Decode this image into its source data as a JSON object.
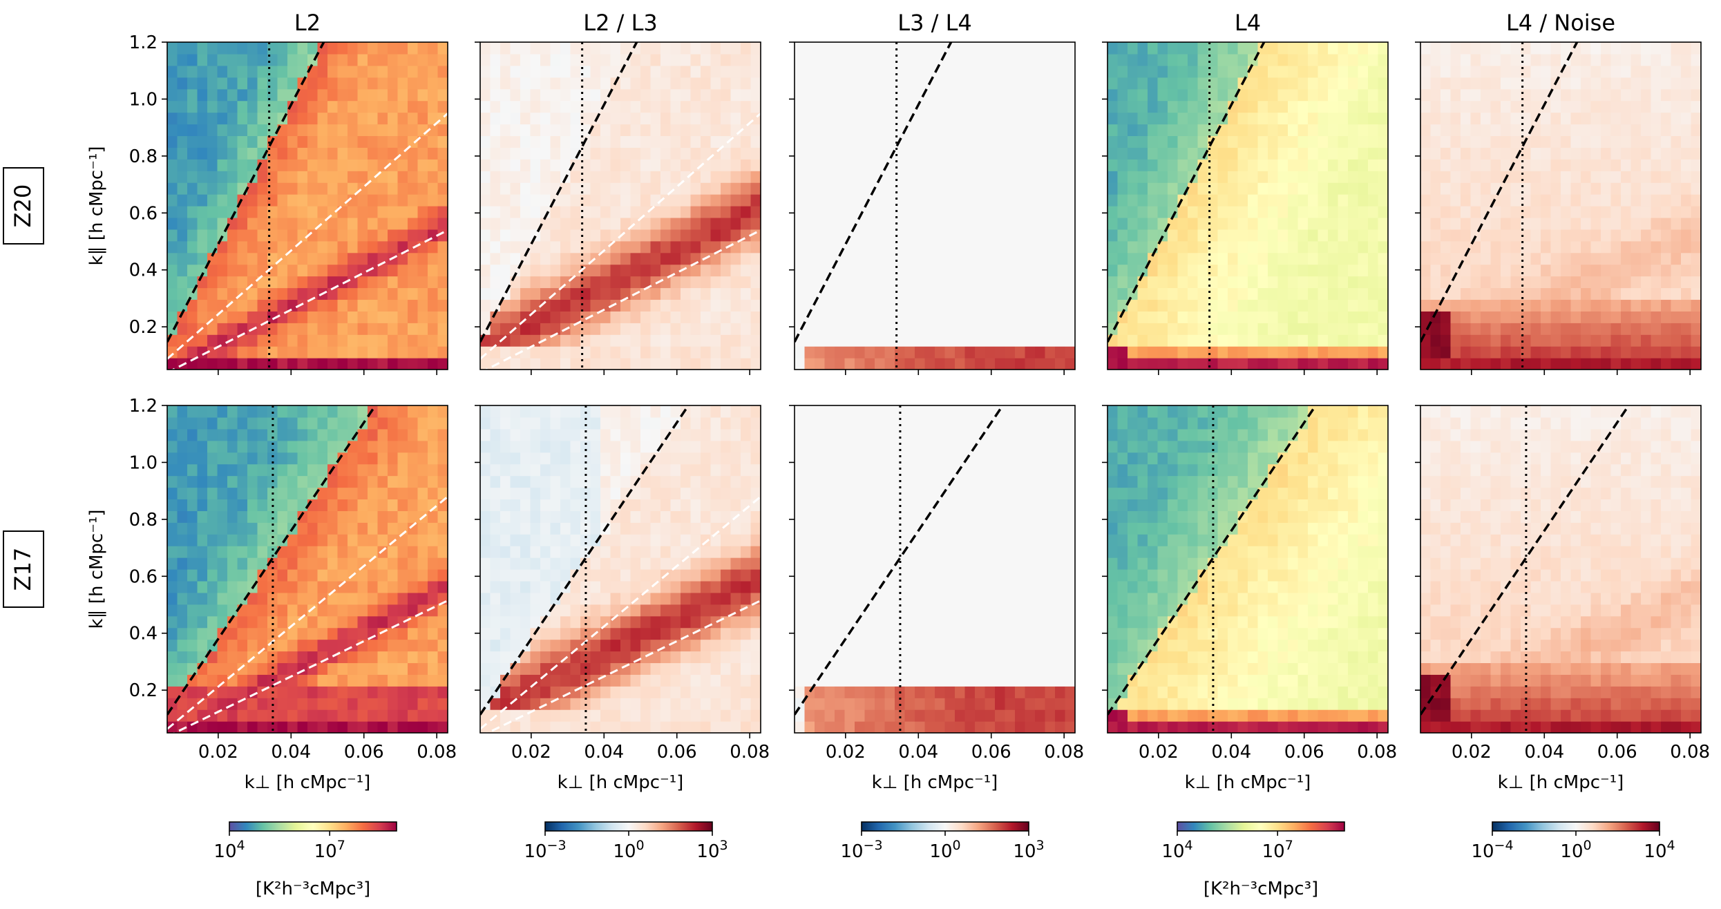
{
  "figure": {
    "column_titles": [
      "L2",
      "L2 / L3",
      "L3 / L4",
      "L4",
      "L4 / Noise"
    ],
    "row_labels": [
      "Z20",
      "Z17"
    ],
    "xlabel": "k⊥ [h cMpc⁻¹]",
    "ylabel": "k∥ [h cMpc⁻¹]"
  },
  "colors": {
    "diverging": [
      "#053061",
      "#2166ac",
      "#4393c3",
      "#92c5de",
      "#d1e5f0",
      "#f7f7f7",
      "#fddbc7",
      "#f4a582",
      "#d6604d",
      "#b2182b",
      "#67001f"
    ],
    "spectral": [
      "#5e4fa2",
      "#3288bd",
      "#66c2a5",
      "#abdda4",
      "#e6f598",
      "#ffffbf",
      "#fee08b",
      "#fdae61",
      "#f46d43",
      "#d53e4f",
      "#9e0142"
    ],
    "wedge_line": "#000000",
    "white_line": "#ffffff"
  },
  "chart_data": [
    {
      "panel": "Z20 L2",
      "type": "heatmap",
      "colormap": "Spectral_r",
      "scale": "log",
      "vmin": 10000,
      "vmax": 1000000000,
      "xlim": [
        0.006,
        0.083
      ],
      "ylim": [
        0.05,
        1.2
      ],
      "xticks": [
        0.02,
        0.04,
        0.06,
        0.08
      ],
      "yticks": [
        0.2,
        0.4,
        0.6,
        0.8,
        1.0,
        1.2
      ],
      "horizon_wedge_slope": 24.5,
      "vertical_line_kperp": 0.034,
      "white_wedges": [
        {
          "slope": 11.2,
          "intercept": 0.02
        },
        {
          "slope": 6.5,
          "intercept": 0.0
        }
      ]
    },
    {
      "panel": "Z20 L2 / L3",
      "type": "heatmap",
      "colormap": "RdBu_r",
      "scale": "log",
      "vmin": 0.001,
      "vmax": 1000,
      "xlim": [
        0.006,
        0.083
      ],
      "ylim": [
        0.05,
        1.2
      ],
      "xticks": [
        0.02,
        0.04,
        0.06,
        0.08
      ],
      "yticks": [
        0.2,
        0.4,
        0.6,
        0.8,
        1.0,
        1.2
      ],
      "horizon_wedge_slope": 24.5,
      "vertical_line_kperp": 0.034,
      "white_wedges": [
        {
          "slope": 11.2,
          "intercept": 0.02
        },
        {
          "slope": 6.5,
          "intercept": 0.0
        }
      ]
    },
    {
      "panel": "Z20 L3 / L4",
      "type": "heatmap",
      "colormap": "RdBu_r",
      "scale": "log",
      "vmin": 0.001,
      "vmax": 1000,
      "xlim": [
        0.006,
        0.083
      ],
      "ylim": [
        0.05,
        1.2
      ],
      "xticks": [
        0.02,
        0.04,
        0.06,
        0.08
      ],
      "yticks": [
        0.2,
        0.4,
        0.6,
        0.8,
        1.0,
        1.2
      ],
      "horizon_wedge_slope": 24.5,
      "vertical_line_kperp": 0.034
    },
    {
      "panel": "Z20 L4",
      "type": "heatmap",
      "colormap": "Spectral_r",
      "scale": "log",
      "vmin": 10000,
      "vmax": 1000000000,
      "xlim": [
        0.006,
        0.083
      ],
      "ylim": [
        0.05,
        1.2
      ],
      "xticks": [
        0.02,
        0.04,
        0.06,
        0.08
      ],
      "yticks": [
        0.2,
        0.4,
        0.6,
        0.8,
        1.0,
        1.2
      ],
      "horizon_wedge_slope": 24.5,
      "vertical_line_kperp": 0.034
    },
    {
      "panel": "Z20 L4 / Noise",
      "type": "heatmap",
      "colormap": "RdBu_r",
      "scale": "log",
      "vmin": 0.0001,
      "vmax": 10000,
      "xlim": [
        0.006,
        0.083
      ],
      "ylim": [
        0.05,
        1.2
      ],
      "xticks": [
        0.02,
        0.04,
        0.06,
        0.08
      ],
      "yticks": [
        0.2,
        0.4,
        0.6,
        0.8,
        1.0,
        1.2
      ],
      "horizon_wedge_slope": 24.5,
      "vertical_line_kperp": 0.034
    },
    {
      "panel": "Z17 L2",
      "type": "heatmap",
      "colormap": "Spectral_r",
      "scale": "log",
      "vmin": 10000,
      "vmax": 1000000000,
      "xlim": [
        0.006,
        0.083
      ],
      "ylim": [
        0.05,
        1.2
      ],
      "xticks": [
        0.02,
        0.04,
        0.06,
        0.08
      ],
      "yticks": [
        0.2,
        0.4,
        0.6,
        0.8,
        1.0,
        1.2
      ],
      "horizon_wedge_slope": 19.0,
      "vertical_line_kperp": 0.035,
      "white_wedges": [
        {
          "slope": 10.6,
          "intercept": 0.0
        },
        {
          "slope": 6.2,
          "intercept": 0.0
        }
      ]
    },
    {
      "panel": "Z17 L2 / L3",
      "type": "heatmap",
      "colormap": "RdBu_r",
      "scale": "log",
      "vmin": 0.001,
      "vmax": 1000,
      "xlim": [
        0.006,
        0.083
      ],
      "ylim": [
        0.05,
        1.2
      ],
      "xticks": [
        0.02,
        0.04,
        0.06,
        0.08
      ],
      "yticks": [
        0.2,
        0.4,
        0.6,
        0.8,
        1.0,
        1.2
      ],
      "horizon_wedge_slope": 19.0,
      "vertical_line_kperp": 0.035,
      "white_wedges": [
        {
          "slope": 10.6,
          "intercept": 0.0
        },
        {
          "slope": 6.2,
          "intercept": 0.0
        }
      ]
    },
    {
      "panel": "Z17 L3 / L4",
      "type": "heatmap",
      "colormap": "RdBu_r",
      "scale": "log",
      "vmin": 0.001,
      "vmax": 1000,
      "xlim": [
        0.006,
        0.083
      ],
      "ylim": [
        0.05,
        1.2
      ],
      "xticks": [
        0.02,
        0.04,
        0.06,
        0.08
      ],
      "yticks": [
        0.2,
        0.4,
        0.6,
        0.8,
        1.0,
        1.2
      ],
      "horizon_wedge_slope": 19.0,
      "vertical_line_kperp": 0.035
    },
    {
      "panel": "Z17 L4",
      "type": "heatmap",
      "colormap": "Spectral_r",
      "scale": "log",
      "vmin": 10000,
      "vmax": 1000000000,
      "xlim": [
        0.006,
        0.083
      ],
      "ylim": [
        0.05,
        1.2
      ],
      "xticks": [
        0.02,
        0.04,
        0.06,
        0.08
      ],
      "yticks": [
        0.2,
        0.4,
        0.6,
        0.8,
        1.0,
        1.2
      ],
      "horizon_wedge_slope": 19.0,
      "vertical_line_kperp": 0.035
    },
    {
      "panel": "Z17 L4 / Noise",
      "type": "heatmap",
      "colormap": "RdBu_r",
      "scale": "log",
      "vmin": 0.0001,
      "vmax": 10000,
      "xlim": [
        0.006,
        0.083
      ],
      "ylim": [
        0.05,
        1.2
      ],
      "xticks": [
        0.02,
        0.04,
        0.06,
        0.08
      ],
      "yticks": [
        0.2,
        0.4,
        0.6,
        0.8,
        1.0,
        1.2
      ],
      "horizon_wedge_slope": 19.0,
      "vertical_line_kperp": 0.035
    }
  ],
  "colorbars": [
    {
      "column": "L2",
      "colormap": "spectral",
      "ticks": [
        {
          "label": "10",
          "exp": "4",
          "frac": 0.0
        },
        {
          "label": "10",
          "exp": "7",
          "frac": 0.6
        }
      ],
      "unit_label": "[K²h⁻³cMpc³]"
    },
    {
      "column": "L2 / L3",
      "colormap": "diverging",
      "ticks": [
        {
          "label": "10",
          "exp": "−3",
          "frac": 0.0
        },
        {
          "label": "10",
          "exp": "0",
          "frac": 0.5
        },
        {
          "label": "10",
          "exp": "3",
          "frac": 1.0
        }
      ],
      "unit_label": ""
    },
    {
      "column": "L3 / L4",
      "colormap": "diverging",
      "ticks": [
        {
          "label": "10",
          "exp": "−3",
          "frac": 0.0
        },
        {
          "label": "10",
          "exp": "0",
          "frac": 0.5
        },
        {
          "label": "10",
          "exp": "3",
          "frac": 1.0
        }
      ],
      "unit_label": ""
    },
    {
      "column": "L4",
      "colormap": "spectral",
      "ticks": [
        {
          "label": "10",
          "exp": "4",
          "frac": 0.0
        },
        {
          "label": "10",
          "exp": "7",
          "frac": 0.6
        }
      ],
      "unit_label": "[K²h⁻³cMpc³]"
    },
    {
      "column": "L4 / Noise",
      "colormap": "diverging",
      "ticks": [
        {
          "label": "10",
          "exp": "−4",
          "frac": 0.0
        },
        {
          "label": "10",
          "exp": "0",
          "frac": 0.5
        },
        {
          "label": "10",
          "exp": "4",
          "frac": 1.0
        }
      ],
      "unit_label": ""
    }
  ]
}
